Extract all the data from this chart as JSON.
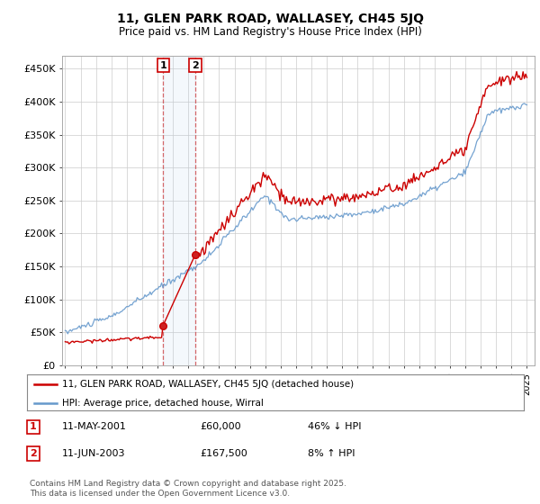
{
  "title": "11, GLEN PARK ROAD, WALLASEY, CH45 5JQ",
  "subtitle": "Price paid vs. HM Land Registry's House Price Index (HPI)",
  "ylim": [
    0,
    470000
  ],
  "yticks": [
    0,
    50000,
    100000,
    150000,
    200000,
    250000,
    300000,
    350000,
    400000,
    450000
  ],
  "ytick_labels": [
    "£0",
    "£50K",
    "£100K",
    "£150K",
    "£200K",
    "£250K",
    "£300K",
    "£350K",
    "£400K",
    "£450K"
  ],
  "legend_line1": "11, GLEN PARK ROAD, WALLASEY, CH45 5JQ (detached house)",
  "legend_line2": "HPI: Average price, detached house, Wirral",
  "sale1_date": "11-MAY-2001",
  "sale1_price": "£60,000",
  "sale1_hpi": "46% ↓ HPI",
  "sale2_date": "11-JUN-2003",
  "sale2_price": "£167,500",
  "sale2_hpi": "8% ↑ HPI",
  "footnote": "Contains HM Land Registry data © Crown copyright and database right 2025.\nThis data is licensed under the Open Government Licence v3.0.",
  "line_color_red": "#cc0000",
  "line_color_blue": "#6699cc",
  "sale1_year": 2001.37,
  "sale1_val": 60000,
  "sale2_year": 2003.45,
  "sale2_val": 167500,
  "xstart": 1995,
  "xend": 2025
}
